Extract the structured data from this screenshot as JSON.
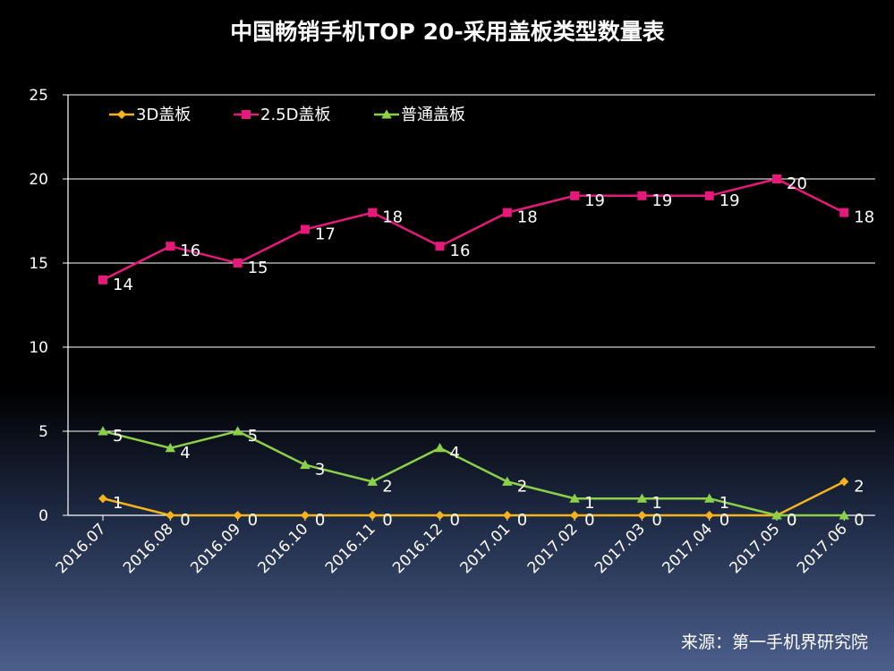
{
  "chart_data": {
    "type": "line",
    "title": "中国畅销手机TOP 20-采用盖板类型数量表",
    "categories": [
      "2016.07",
      "2016.08",
      "2016.09",
      "2016.10",
      "2016.11",
      "2016.12",
      "2017.01",
      "2017.02",
      "2017.03",
      "2017.04",
      "2017.05",
      "2017.06"
    ],
    "ylim": [
      0,
      25
    ],
    "yticks": [
      0,
      5,
      10,
      15,
      20,
      25
    ],
    "grid": true,
    "legend_position": "top-left",
    "series": [
      {
        "name": "3D盖板",
        "color": "#f5b31c",
        "marker": "diamond",
        "values": [
          1,
          0,
          0,
          0,
          0,
          0,
          0,
          0,
          0,
          0,
          0,
          2
        ]
      },
      {
        "name": "2.5D盖板",
        "color": "#e5197a",
        "marker": "square",
        "values": [
          14,
          16,
          15,
          17,
          18,
          16,
          18,
          19,
          19,
          19,
          20,
          18
        ]
      },
      {
        "name": "普通盖板",
        "color": "#8cd04a",
        "marker": "triangle",
        "values": [
          5,
          4,
          5,
          3,
          2,
          4,
          2,
          1,
          1,
          1,
          0,
          0
        ]
      }
    ],
    "source": "来源：第一手机界研究院"
  }
}
